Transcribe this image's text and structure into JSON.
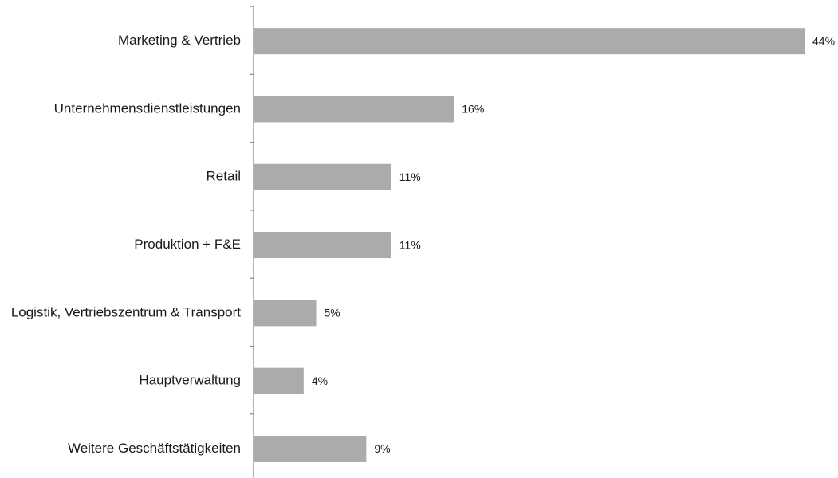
{
  "chart_data": {
    "type": "bar",
    "orientation": "horizontal",
    "categories": [
      "Marketing & Vertrieb",
      "Unternehmensdienstleistungen",
      "Retail",
      "Produktion + F&E",
      "Logistik, Vertriebszentrum & Transport",
      "Hauptverwaltung",
      "Weitere Geschäftstätigkeiten"
    ],
    "values": [
      44,
      16,
      11,
      11,
      5,
      4,
      9
    ],
    "value_labels": [
      "44%",
      "16%",
      "11%",
      "11%",
      "5%",
      "4%",
      "9%"
    ],
    "title": "",
    "xlabel": "",
    "ylabel": "",
    "xlim": [
      0,
      44
    ],
    "grid": false,
    "legend": "none",
    "bar_color": "#ababab",
    "axis_color": "#8c8c8c"
  }
}
